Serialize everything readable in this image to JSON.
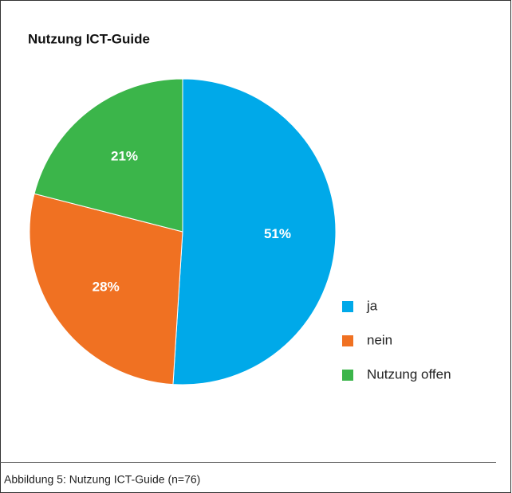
{
  "chart_data": {
    "type": "pie",
    "title": "Nutzung ICT-Guide",
    "categories": [
      "ja",
      "nein",
      "Nutzung offen"
    ],
    "values": [
      51,
      28,
      21
    ],
    "value_labels": [
      "51%",
      "28%",
      "21%"
    ],
    "colors": [
      "#00a9e9",
      "#f07122",
      "#3bb54a"
    ],
    "legend": "right",
    "caption": "Abbildung 5: Nutzung ICT-Guide (n=76)"
  }
}
